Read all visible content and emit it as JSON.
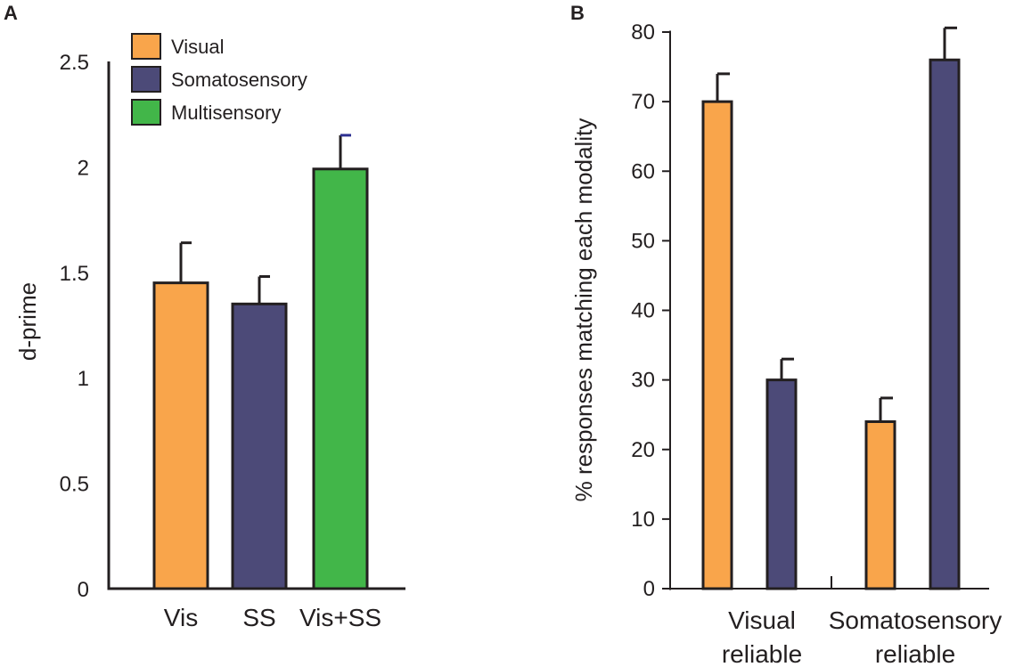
{
  "chart_data": [
    {
      "type": "bar",
      "panel": "A",
      "title": "",
      "xlabel": "",
      "ylabel": "d-prime",
      "ylim": [
        0,
        2.5
      ],
      "yticks": [
        {
          "value": 0,
          "label": "0"
        },
        {
          "value": 0.5,
          "label": "0.5"
        },
        {
          "value": 1,
          "label": "1"
        },
        {
          "value": 1.5,
          "label": "1.5"
        },
        {
          "value": 2,
          "label": "2"
        },
        {
          "value": 2.5,
          "label": "2.5"
        }
      ],
      "categories": [
        "Vis",
        "SS",
        "Vis+SS"
      ],
      "values": [
        1.45,
        1.35,
        1.99
      ],
      "errors": [
        0.19,
        0.13,
        0.16
      ],
      "bar_colors": [
        "#f9a54b",
        "#4c4a78",
        "#42b649"
      ],
      "legend": [
        {
          "label": "Visual",
          "color": "#f9a54b"
        },
        {
          "label": "Somatosensory",
          "color": "#4c4a78"
        },
        {
          "label": "Multisensory",
          "color": "#42b649"
        }
      ],
      "legend_position": "top-left"
    },
    {
      "type": "bar",
      "panel": "B",
      "title": "",
      "xlabel": "",
      "ylabel": "% responses matching each modality",
      "ylim": [
        0,
        80
      ],
      "yticks": [
        {
          "value": 0,
          "label": "0"
        },
        {
          "value": 10,
          "label": "10"
        },
        {
          "value": 20,
          "label": "20"
        },
        {
          "value": 30,
          "label": "30"
        },
        {
          "value": 40,
          "label": "40"
        },
        {
          "value": 50,
          "label": "50"
        },
        {
          "value": 60,
          "label": "60"
        },
        {
          "value": 70,
          "label": "70"
        },
        {
          "value": 80,
          "label": "80"
        }
      ],
      "groups": [
        {
          "label_lines": [
            "Visual",
            "reliable"
          ]
        },
        {
          "label_lines": [
            "Somatosensory",
            "reliable"
          ]
        }
      ],
      "series": [
        {
          "name": "Visual",
          "color": "#f9a54b",
          "values": [
            70,
            24
          ],
          "errors": [
            4,
            3.4
          ]
        },
        {
          "name": "Somatosensory",
          "color": "#4c4a78",
          "values": [
            30,
            76
          ],
          "errors": [
            3,
            4.6
          ]
        }
      ]
    }
  ]
}
